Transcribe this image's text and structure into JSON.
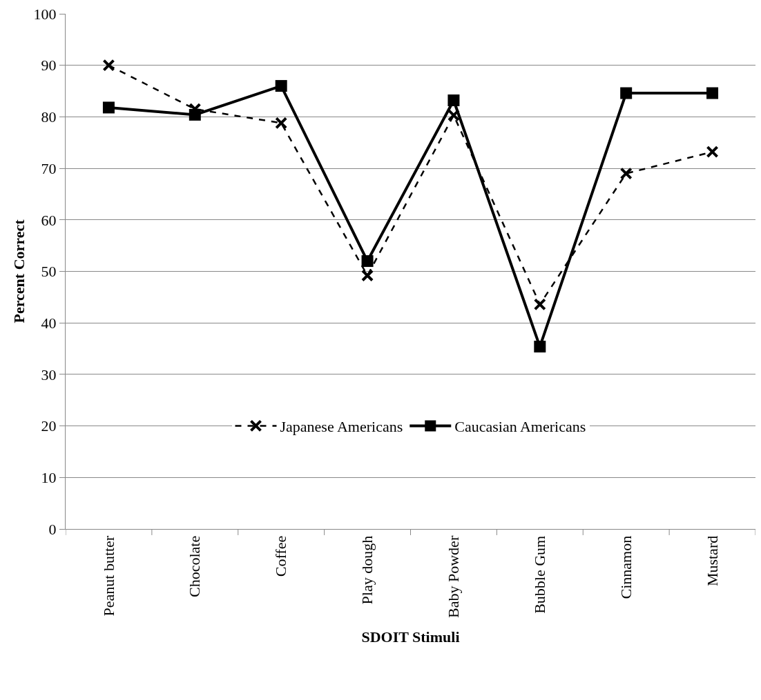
{
  "chart_data": {
    "type": "line",
    "xlabel": "SDOIT Stimuli",
    "ylabel": "Percent Correct",
    "categories": [
      "Peanut butter",
      "Chocolate",
      "Coffee",
      "Play dough",
      "Baby Powder",
      "Bubble Gum",
      "Cinnamon",
      "Mustard"
    ],
    "series": [
      {
        "name": "Japanese Americans",
        "color": "#000000",
        "marker": "cross",
        "line_style": "dashed",
        "values": [
          90,
          81.5,
          78.8,
          49.2,
          80.3,
          43.6,
          69,
          73.2
        ]
      },
      {
        "name": "Caucasian Americans",
        "color": "#000000",
        "marker": "square",
        "line_style": "solid",
        "values": [
          81.8,
          80.4,
          86,
          52,
          83.2,
          35.4,
          84.6,
          84.6
        ]
      }
    ],
    "ylim": [
      0,
      100
    ],
    "yticks": [
      0,
      10,
      20,
      30,
      40,
      50,
      60,
      70,
      80,
      90,
      100
    ],
    "grid": "y",
    "legend": "bottom"
  }
}
